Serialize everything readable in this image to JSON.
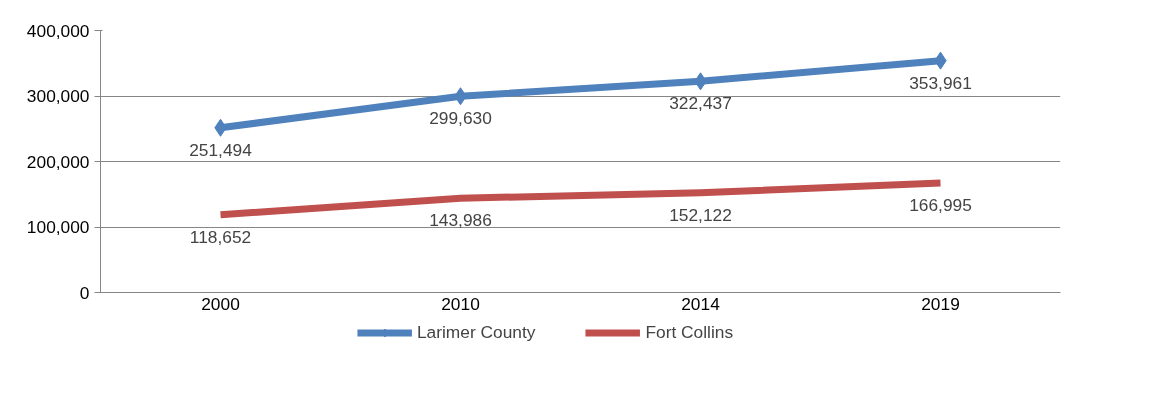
{
  "chart_data": {
    "type": "line",
    "categories": [
      "2000",
      "2010",
      "2014",
      "2019"
    ],
    "series": [
      {
        "name": "Larimer County",
        "color": "#4f81bd",
        "marker": "diamond",
        "values": [
          251494,
          299630,
          322437,
          353961
        ],
        "value_labels": [
          "251,494",
          "299,630",
          "322,437",
          "353,961"
        ]
      },
      {
        "name": "Fort Collins",
        "color": "#c0504d",
        "marker": "none",
        "values": [
          118652,
          143986,
          152122,
          166995
        ],
        "value_labels": [
          "118,652",
          "143,986",
          "152,122",
          "166,995"
        ]
      }
    ],
    "ylim": [
      0,
      400000
    ],
    "yticks": [
      {
        "value": 0,
        "label": "0"
      },
      {
        "value": 100000,
        "label": "100,000"
      },
      {
        "value": 200000,
        "label": "200,000"
      },
      {
        "value": 300000,
        "label": "300,000"
      },
      {
        "value": 400000,
        "label": "400,000"
      }
    ],
    "grid": "y",
    "legend": "bottom",
    "line_style": "solid"
  }
}
